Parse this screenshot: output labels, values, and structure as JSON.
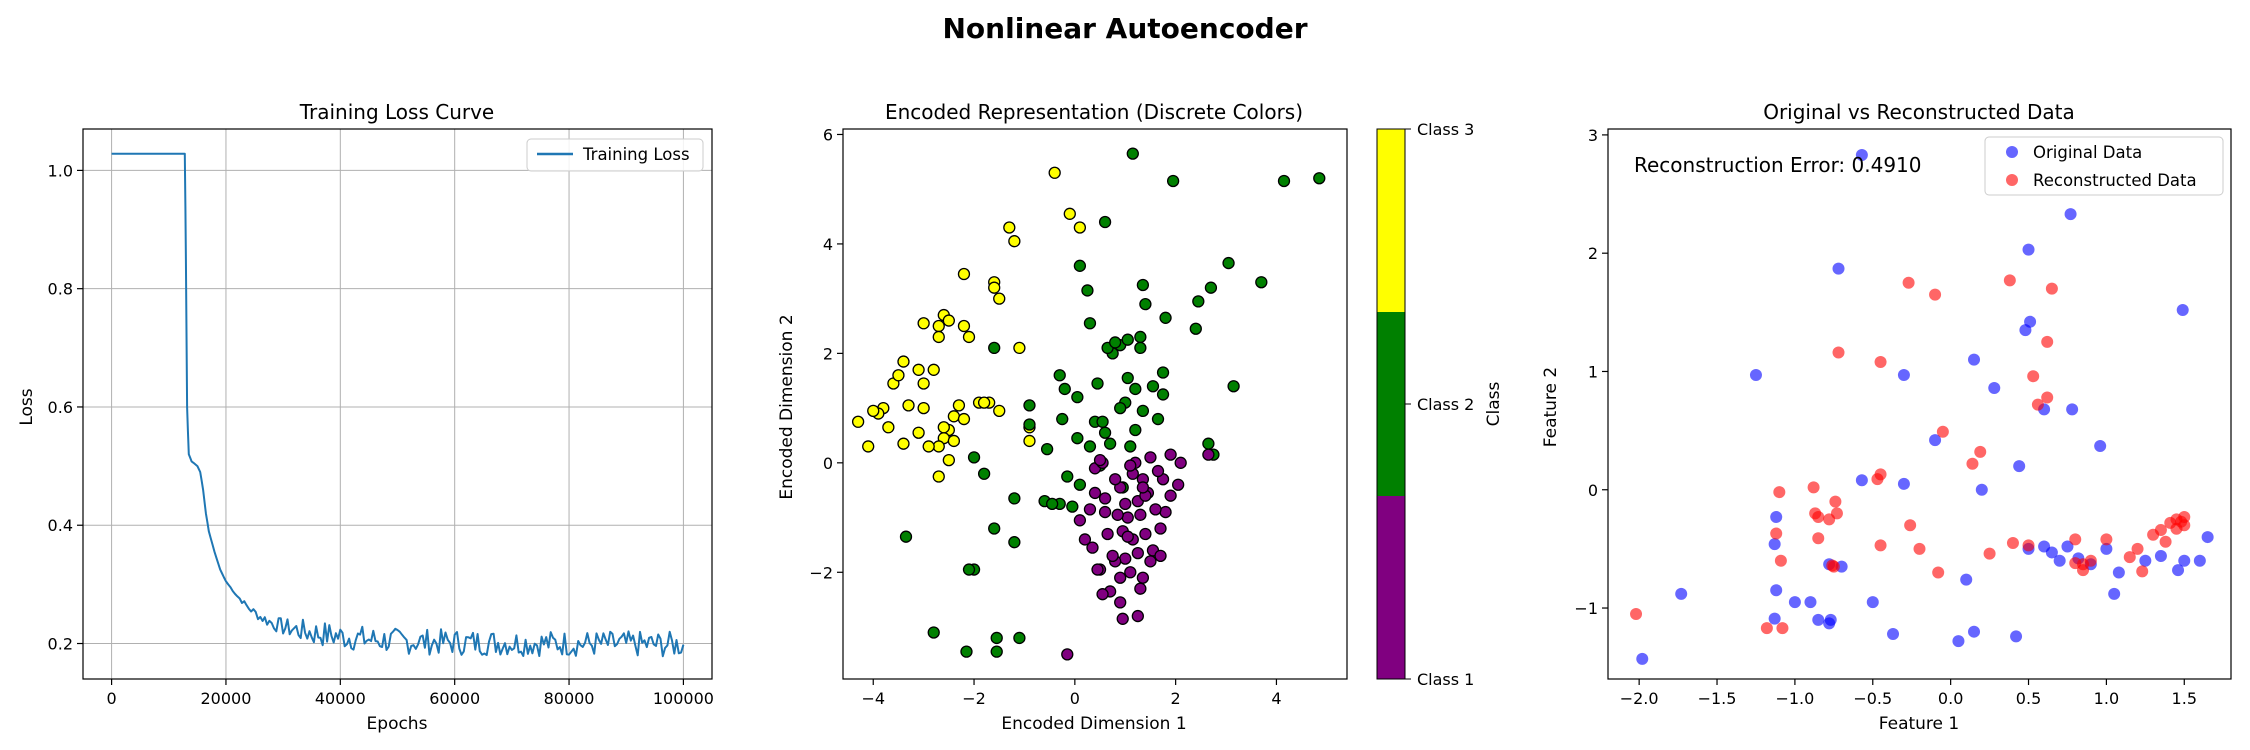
{
  "figure": {
    "title": "Nonlinear Autoencoder"
  },
  "chart_data": [
    {
      "type": "line",
      "title": "Training Loss Curve",
      "xlabel": "Epochs",
      "ylabel": "Loss",
      "xlim": [
        -5000,
        105000
      ],
      "ylim": [
        0.14,
        1.07
      ],
      "xticks": [
        0,
        20000,
        40000,
        60000,
        80000,
        100000
      ],
      "yticks": [
        0.2,
        0.4,
        0.6,
        0.8,
        1.0
      ],
      "xtick_labels": [
        "0",
        "20000",
        "40000",
        "60000",
        "80000",
        "100000"
      ],
      "ytick_labels": [
        "0.2",
        "0.4",
        "0.6",
        "0.8",
        "1.0"
      ],
      "grid": true,
      "legend": "upper-right",
      "series": [
        {
          "name": "Training Loss",
          "color": "#1f77b4",
          "x": [
            0,
            12800,
            13000,
            13200,
            13500,
            14000,
            15000,
            15500,
            16000,
            16500,
            17000,
            18000,
            19000,
            20000,
            22000,
            24000,
            26000,
            28000,
            30000,
            35000,
            40000,
            45000,
            50000,
            60000,
            70000,
            80000,
            90000,
            100000
          ],
          "values": [
            1.028,
            1.028,
            0.85,
            0.6,
            0.52,
            0.508,
            0.5,
            0.49,
            0.46,
            0.42,
            0.39,
            0.355,
            0.325,
            0.305,
            0.28,
            0.26,
            0.245,
            0.235,
            0.228,
            0.218,
            0.212,
            0.207,
            0.204,
            0.202,
            0.201,
            0.2,
            0.199,
            0.198
          ],
          "noise_band": 0.022
        }
      ]
    },
    {
      "type": "scatter",
      "title": "Encoded Representation (Discrete Colors)",
      "xlabel": "Encoded Dimension 1",
      "ylabel": "Encoded Dimension 2",
      "xlim": [
        -4.6,
        5.4
      ],
      "ylim": [
        -3.95,
        6.1
      ],
      "xticks": [
        -4,
        -2,
        0,
        2,
        4
      ],
      "yticks": [
        -2,
        0,
        2,
        4,
        6
      ],
      "xtick_labels": [
        "−4",
        "−2",
        "0",
        "2",
        "4"
      ],
      "ytick_labels": [
        "−2",
        "0",
        "2",
        "4",
        "6"
      ],
      "grid": false,
      "colorbar": {
        "label": "Class",
        "classes": [
          "Class 1",
          "Class 2",
          "Class 3"
        ],
        "colors": [
          "#800080",
          "#008000",
          "#ffff00"
        ]
      },
      "series": [
        {
          "name": "Class 3",
          "color": "#ffff00",
          "x": [
            -0.4,
            -0.1,
            0.1,
            -1.3,
            -1.2,
            -1.6,
            -1.5,
            -1.6,
            -2.2,
            -2.6,
            -2.7,
            -2.5,
            -2.2,
            -2.1,
            -2.7,
            -3.0,
            -1.1,
            -3.4,
            -3.6,
            -3.8,
            -3.1,
            -3.5,
            -3.0,
            -2.8,
            -3.3,
            -2.3,
            -1.9,
            -1.7,
            -1.5,
            -1.8,
            -2.4,
            -2.2,
            -2.5,
            -2.6,
            -2.4,
            -2.7,
            -2.9,
            -3.1,
            -3.4,
            -3.7,
            -3.9,
            -4.0,
            -4.3,
            -4.1,
            -0.9,
            -0.9,
            -2.5,
            -2.7,
            -3.0,
            -2.6
          ],
          "y": [
            5.3,
            4.55,
            4.3,
            4.3,
            4.05,
            3.3,
            3.0,
            3.2,
            3.45,
            2.7,
            2.5,
            2.6,
            2.5,
            2.3,
            2.3,
            2.55,
            2.1,
            1.85,
            1.45,
            1.0,
            1.7,
            1.6,
            1.45,
            1.7,
            1.05,
            1.05,
            1.1,
            1.1,
            0.95,
            1.1,
            0.85,
            0.8,
            0.6,
            0.45,
            0.4,
            0.3,
            0.3,
            0.55,
            0.35,
            0.65,
            0.9,
            0.95,
            0.75,
            0.3,
            0.65,
            0.4,
            0.05,
            -0.25,
            1.0,
            0.65
          ]
        },
        {
          "name": "Class 2",
          "color": "#008000",
          "x": [
            1.15,
            1.95,
            4.15,
            4.85,
            3.05,
            3.7,
            0.6,
            0.1,
            1.35,
            0.25,
            2.45,
            2.7,
            1.4,
            2.4,
            0.3,
            1.8,
            0.75,
            0.9,
            1.05,
            1.3,
            -1.6,
            0.65,
            0.8,
            1.3,
            1.75,
            -0.3,
            -0.2,
            0.45,
            1.05,
            1.55,
            3.15,
            1.0,
            1.2,
            1.75,
            0.05,
            0.9,
            1.35,
            -0.9,
            -0.9,
            -0.25,
            0.4,
            0.55,
            1.65,
            0.05,
            0.6,
            1.2,
            -2.0,
            2.65,
            0.7,
            0.3,
            -0.55,
            1.1,
            -0.15,
            -0.3,
            -1.8,
            -1.2,
            -0.05,
            0.1,
            2.75,
            0.5,
            -2.0,
            -1.2,
            -1.6,
            -0.6,
            0.95,
            -3.35,
            -2.15,
            -1.1,
            -1.55,
            -2.8,
            -2.1,
            -1.55,
            -0.45
          ],
          "y": [
            5.65,
            5.15,
            5.15,
            5.2,
            3.65,
            3.3,
            4.4,
            3.6,
            3.25,
            3.15,
            2.95,
            3.2,
            2.9,
            2.45,
            2.55,
            2.65,
            2.0,
            2.15,
            2.25,
            2.1,
            2.1,
            2.1,
            2.2,
            2.3,
            1.65,
            1.6,
            1.35,
            1.45,
            1.55,
            1.4,
            1.4,
            1.1,
            1.35,
            1.25,
            1.2,
            1.0,
            0.95,
            1.05,
            0.7,
            0.8,
            0.75,
            0.75,
            0.8,
            0.45,
            0.55,
            0.6,
            0.1,
            0.35,
            0.35,
            0.3,
            0.25,
            0.3,
            -0.25,
            -0.75,
            -0.2,
            -0.65,
            -0.8,
            -0.4,
            0.15,
            -0.05,
            -1.95,
            -1.45,
            -1.2,
            -0.7,
            -0.45,
            -1.35,
            -3.45,
            -3.2,
            -3.2,
            -3.1,
            -1.95,
            -3.45,
            -0.75
          ]
        },
        {
          "name": "Class 1",
          "color": "#800080",
          "x": [
            -0.15,
            0.7,
            0.9,
            1.1,
            1.35,
            1.5,
            1.25,
            1.0,
            0.8,
            1.55,
            1.7,
            1.4,
            1.15,
            0.95,
            1.8,
            2.05,
            1.3,
            1.6,
            1.05,
            0.85,
            1.9,
            1.45,
            1.25,
            1.75,
            2.1,
            0.6,
            0.9,
            1.35,
            1.65,
            0.4,
            0.55,
            1.15,
            1.5,
            1.9,
            0.2,
            0.35,
            0.75,
            1.05,
            0.5,
            0.9,
            1.3,
            1.7,
            0.3,
            0.6,
            1.0,
            1.4,
            0.1,
            0.4,
            0.8,
            1.2,
            0.55,
            0.95,
            1.25,
            0.45,
            0.65,
            1.35,
            1.1,
            0.5,
            2.65
          ],
          "y": [
            -3.5,
            -2.35,
            -2.55,
            -2.0,
            -2.1,
            -1.8,
            -1.65,
            -1.75,
            -1.8,
            -1.6,
            -1.2,
            -1.3,
            -1.4,
            -1.25,
            -0.9,
            -0.4,
            -0.95,
            -0.85,
            -1.0,
            -0.95,
            -0.6,
            -0.55,
            -0.7,
            -0.3,
            0.0,
            -0.65,
            -0.45,
            -0.3,
            -0.15,
            -0.1,
            0.0,
            -0.2,
            0.1,
            0.15,
            -1.4,
            -1.55,
            -1.7,
            -1.35,
            -1.95,
            -2.1,
            -2.3,
            -1.7,
            -0.85,
            -0.9,
            -0.75,
            -0.6,
            -1.05,
            -0.55,
            -0.3,
            0.0,
            -2.4,
            -2.85,
            -2.8,
            -1.95,
            -1.3,
            -0.45,
            -0.05,
            0.05,
            0.15
          ]
        }
      ]
    },
    {
      "type": "scatter",
      "title": "Original vs Reconstructed Data",
      "xlabel": "Feature 1",
      "ylabel": "Feature 2",
      "xlim": [
        -2.2,
        1.8
      ],
      "ylim": [
        -1.6,
        3.05
      ],
      "xticks": [
        -2.0,
        -1.5,
        -1.0,
        -0.5,
        0.0,
        0.5,
        1.0,
        1.5
      ],
      "yticks": [
        -1,
        0,
        1,
        2,
        3
      ],
      "xtick_labels": [
        "−2.0",
        "−1.5",
        "−1.0",
        "−0.5",
        "0.0",
        "0.5",
        "1.0",
        "1.5"
      ],
      "ytick_labels": [
        "−1",
        "0",
        "1",
        "2",
        "3"
      ],
      "grid": false,
      "legend": "upper-right",
      "annotation": "Reconstruction Error: 0.4910",
      "series": [
        {
          "name": "Original Data",
          "color": "#0000ff",
          "x": [
            -0.57,
            0.77,
            0.5,
            -0.72,
            1.49,
            0.51,
            0.48,
            -1.25,
            0.15,
            -0.3,
            0.28,
            0.6,
            0.78,
            -0.1,
            0.96,
            0.44,
            -0.57,
            -0.3,
            0.2,
            -1.12,
            -1.13,
            -0.7,
            -0.78,
            0.5,
            0.6,
            0.75,
            1.0,
            1.35,
            1.6,
            1.46,
            0.7,
            0.82,
            0.9,
            1.08,
            1.25,
            1.5,
            1.65,
            0.65,
            -1.73,
            -1.12,
            -1.13,
            -0.9,
            -1.0,
            -0.77,
            -0.5,
            -0.37,
            0.1,
            0.42,
            1.05,
            -0.78,
            -0.85,
            0.05,
            0.15,
            -1.98
          ],
          "y": [
            2.83,
            2.33,
            2.03,
            1.87,
            1.52,
            1.42,
            1.35,
            0.97,
            1.1,
            0.97,
            0.86,
            0.68,
            0.68,
            0.42,
            0.37,
            0.2,
            0.08,
            0.05,
            0.0,
            -0.23,
            -0.46,
            -0.65,
            -0.63,
            -0.5,
            -0.48,
            -0.48,
            -0.5,
            -0.56,
            -0.6,
            -0.68,
            -0.6,
            -0.58,
            -0.63,
            -0.7,
            -0.6,
            -0.6,
            -0.4,
            -0.53,
            -0.88,
            -0.85,
            -1.09,
            -0.95,
            -0.95,
            -1.1,
            -0.95,
            -1.22,
            -0.76,
            -1.24,
            -0.88,
            -1.13,
            -1.1,
            -1.28,
            -1.2,
            -1.43
          ]
        },
        {
          "name": "Reconstructed Data",
          "color": "#ff0000",
          "x": [
            -0.27,
            0.38,
            0.65,
            -0.1,
            -0.72,
            0.62,
            -0.45,
            0.53,
            0.56,
            0.62,
            0.19,
            -0.05,
            0.14,
            -1.1,
            -1.12,
            -0.88,
            -0.87,
            -0.74,
            -0.73,
            -0.26,
            -0.45,
            0.5,
            0.8,
            1.0,
            1.3,
            1.35,
            1.41,
            1.45,
            1.48,
            1.5,
            1.5,
            1.45,
            1.38,
            1.2,
            1.15,
            0.9,
            0.85,
            1.23,
            -0.47,
            -0.45,
            -0.2,
            -0.85,
            -0.78,
            0.25,
            0.4,
            0.8,
            -0.08,
            0.85,
            -0.85,
            -0.76,
            -0.75,
            -1.09,
            -1.18,
            -1.08,
            -2.02
          ],
          "y": [
            1.75,
            1.77,
            1.7,
            1.65,
            1.16,
            1.25,
            1.08,
            0.96,
            0.72,
            0.78,
            0.32,
            0.49,
            0.22,
            -0.02,
            -0.37,
            0.02,
            -0.2,
            -0.1,
            -0.2,
            -0.3,
            -0.47,
            -0.47,
            -0.42,
            -0.42,
            -0.38,
            -0.34,
            -0.28,
            -0.25,
            -0.27,
            -0.23,
            -0.3,
            -0.33,
            -0.44,
            -0.5,
            -0.57,
            -0.6,
            -0.68,
            -0.69,
            0.09,
            0.13,
            -0.5,
            -0.23,
            -0.25,
            -0.54,
            -0.45,
            -0.62,
            -0.7,
            -0.63,
            -0.41,
            -0.64,
            -0.65,
            -0.6,
            -1.17,
            -1.17,
            -1.05
          ]
        }
      ]
    }
  ]
}
